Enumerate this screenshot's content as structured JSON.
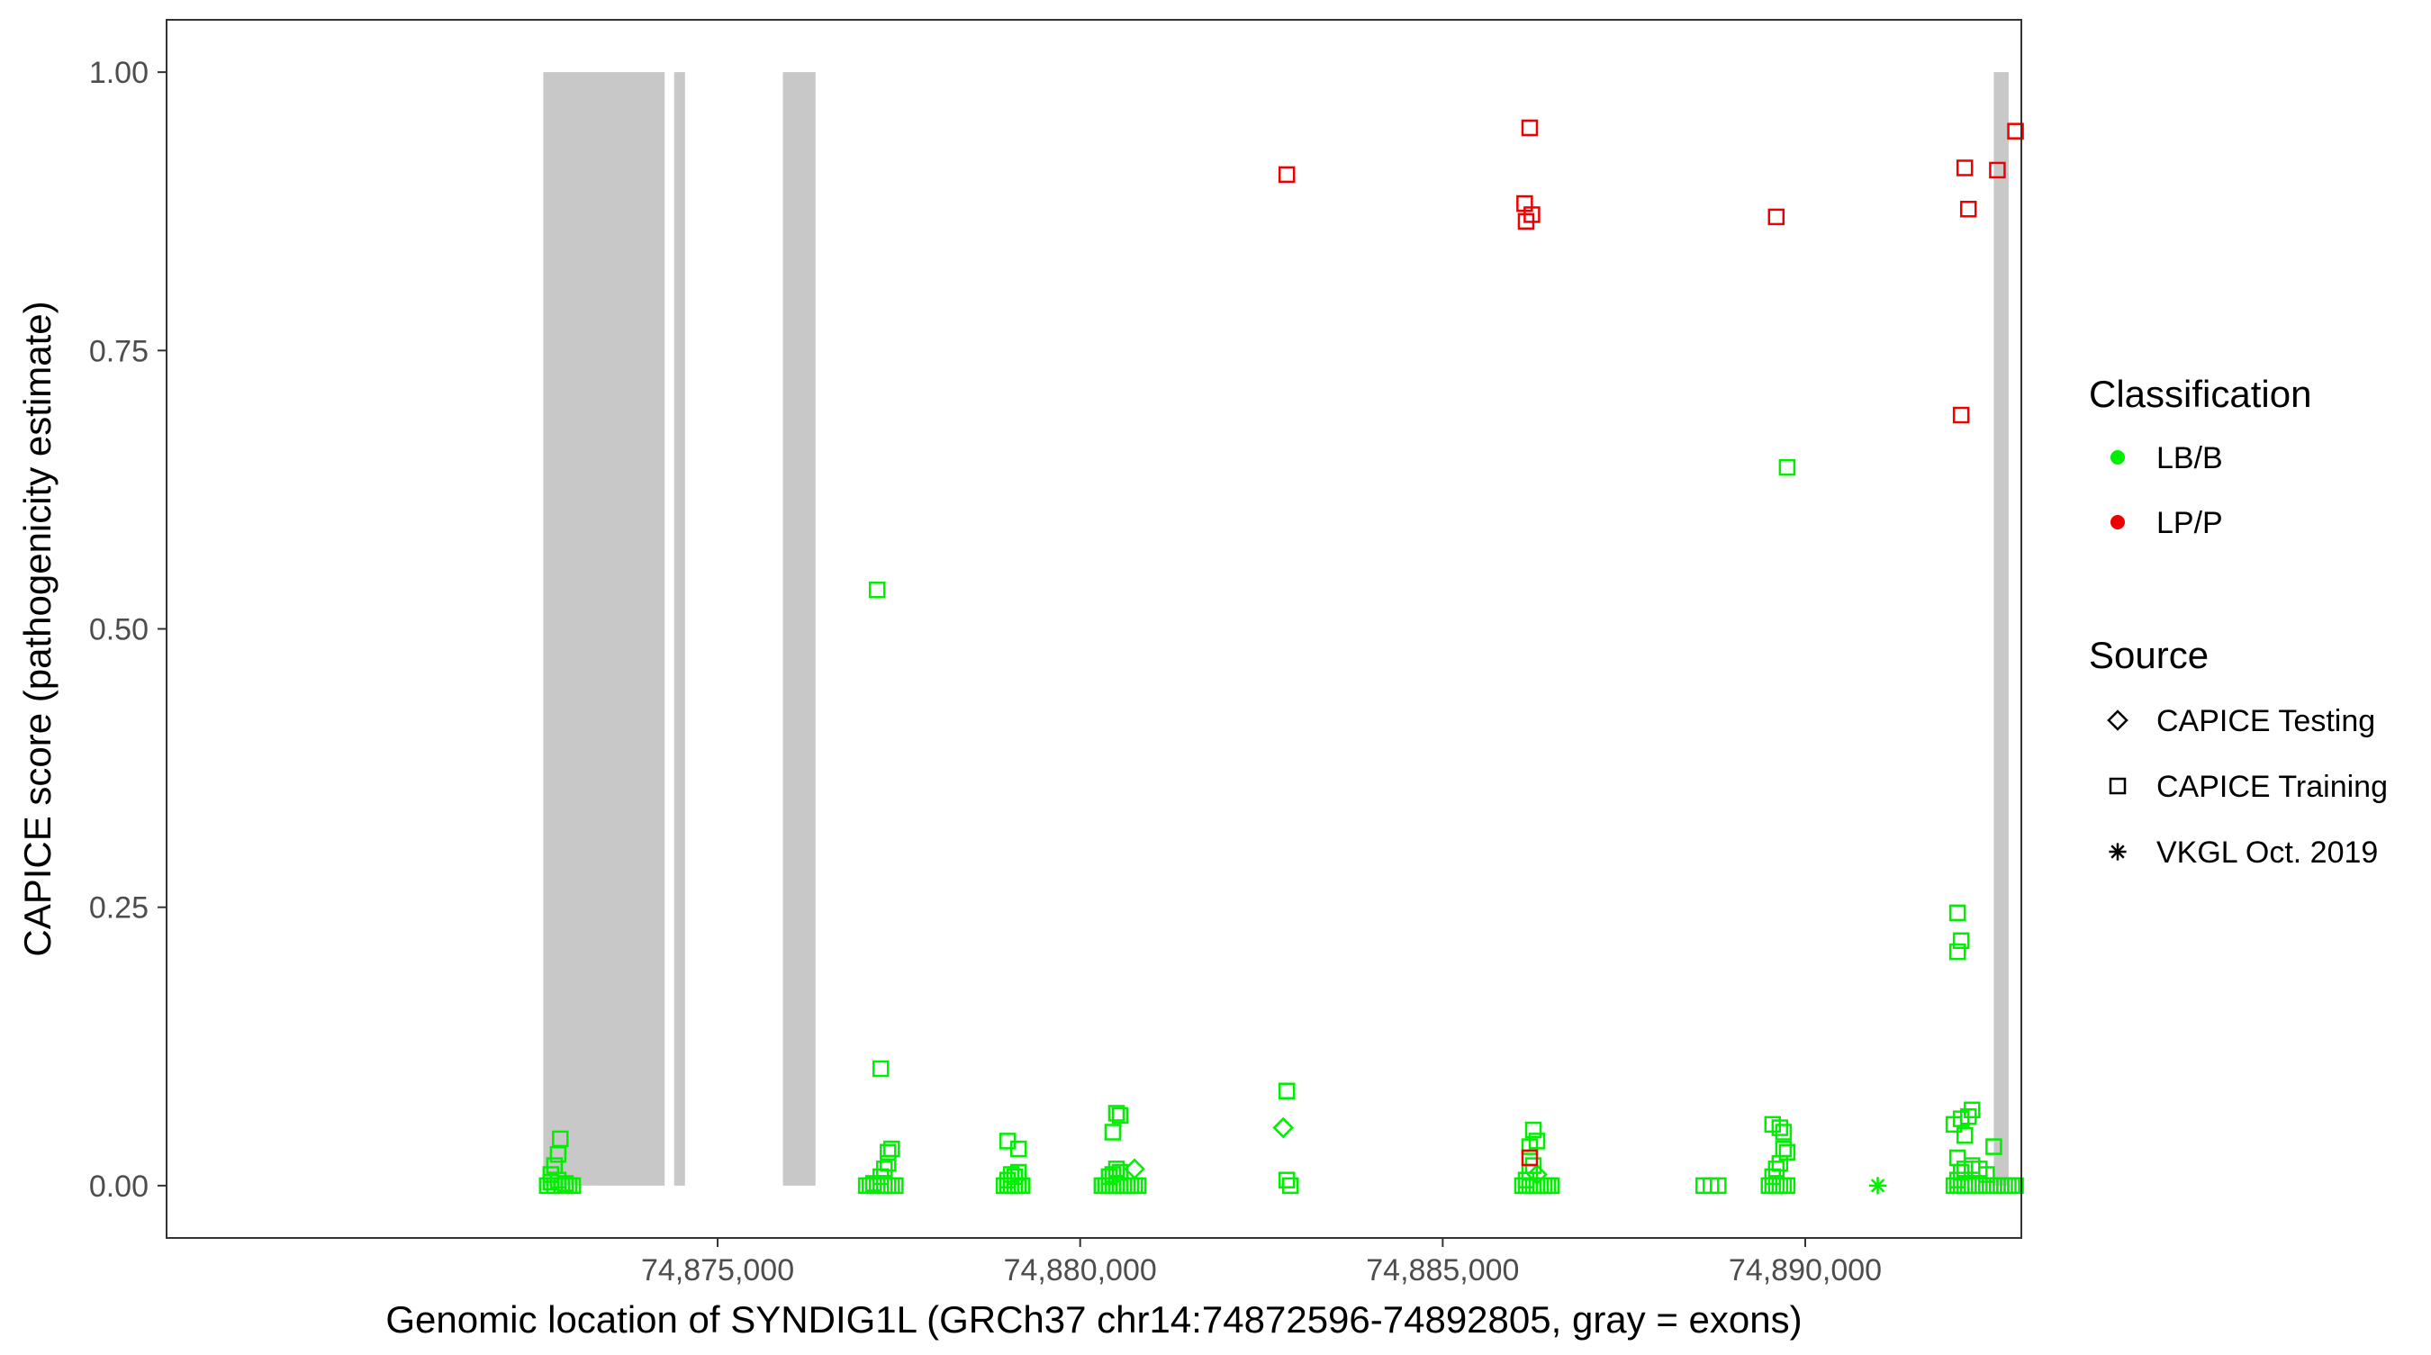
{
  "chart_data": {
    "type": "scatter",
    "title": "",
    "xlabel": "Genomic location of SYNDIG1L (GRCh37 chr14:74872596-74892805, gray = exons)",
    "ylabel": "CAPICE score (pathogenicity estimate)",
    "xlim": [
      74867400,
      74892980
    ],
    "ylim": [
      -0.047,
      1.047
    ],
    "x_ticks": [
      74875000,
      74880000,
      74885000,
      74890000
    ],
    "x_tick_labels": [
      "74,875,000",
      "74,880,000",
      "74,885,000",
      "74,890,000"
    ],
    "y_ticks": [
      0,
      0.25,
      0.5,
      0.75,
      1.0
    ],
    "y_tick_labels": [
      "0.00",
      "0.25",
      "0.50",
      "0.75",
      "1.00"
    ],
    "grid": false,
    "exons": [
      {
        "start": 74872596,
        "end": 74874270
      },
      {
        "start": 74874400,
        "end": 74874550
      },
      {
        "start": 74875900,
        "end": 74876350
      },
      {
        "start": 74892600,
        "end": 74892805
      }
    ],
    "legend_position": "right",
    "legend": {
      "classification_title": "Classification",
      "classification": [
        {
          "label": "LB/B",
          "color": "#00ee00"
        },
        {
          "label": "LP/P",
          "color": "#ee0000"
        }
      ],
      "source_title": "Source",
      "source": [
        {
          "label": "CAPICE Testing",
          "shape": "diamond"
        },
        {
          "label": "CAPICE Training",
          "shape": "square"
        },
        {
          "label": "VKGL Oct. 2019",
          "shape": "asterisk"
        }
      ]
    },
    "series": [
      {
        "classification": "LB/B",
        "source": "CAPICE Training",
        "color": "#00ee00",
        "shape": "square",
        "points": [
          [
            74872650,
            0.0
          ],
          [
            74872700,
            0.003
          ],
          [
            74872750,
            0.0
          ],
          [
            74872800,
            0.005
          ],
          [
            74872850,
            0.0
          ],
          [
            74872900,
            0.002
          ],
          [
            74872950,
            0.0
          ],
          [
            74873000,
            0.0
          ],
          [
            74872700,
            0.01
          ],
          [
            74872750,
            0.018
          ],
          [
            74872800,
            0.028
          ],
          [
            74872830,
            0.042
          ],
          [
            74877200,
            0.535
          ],
          [
            74877250,
            0.105
          ],
          [
            74877050,
            0.0
          ],
          [
            74877100,
            0.0
          ],
          [
            74877150,
            0.002
          ],
          [
            74877200,
            0.0
          ],
          [
            74877250,
            0.0
          ],
          [
            74877300,
            0.0
          ],
          [
            74877350,
            0.0
          ],
          [
            74877400,
            0.0
          ],
          [
            74877450,
            0.0
          ],
          [
            74877250,
            0.008
          ],
          [
            74877300,
            0.015
          ],
          [
            74877350,
            0.02
          ],
          [
            74877350,
            0.03
          ],
          [
            74877400,
            0.033
          ],
          [
            74878950,
            0.0
          ],
          [
            74879000,
            0.0
          ],
          [
            74879050,
            0.0
          ],
          [
            74879100,
            0.0
          ],
          [
            74879150,
            0.0
          ],
          [
            74879200,
            0.0
          ],
          [
            74879000,
            0.005
          ],
          [
            74879050,
            0.01
          ],
          [
            74879100,
            0.008
          ],
          [
            74879150,
            0.012
          ],
          [
            74879000,
            0.04
          ],
          [
            74879150,
            0.033
          ],
          [
            74880300,
            0.0
          ],
          [
            74880350,
            0.0
          ],
          [
            74880400,
            0.0
          ],
          [
            74880450,
            0.0
          ],
          [
            74880500,
            0.0
          ],
          [
            74880550,
            0.0
          ],
          [
            74880600,
            0.0
          ],
          [
            74880650,
            0.0
          ],
          [
            74880700,
            0.0
          ],
          [
            74880750,
            0.0
          ],
          [
            74880800,
            0.0
          ],
          [
            74880400,
            0.008
          ],
          [
            74880450,
            0.01
          ],
          [
            74880500,
            0.015
          ],
          [
            74880550,
            0.012
          ],
          [
            74880450,
            0.048
          ],
          [
            74880500,
            0.065
          ],
          [
            74880550,
            0.063
          ],
          [
            74882850,
            0.085
          ],
          [
            74882850,
            0.005
          ],
          [
            74882900,
            0.0
          ],
          [
            74886100,
            0.0
          ],
          [
            74886150,
            0.0
          ],
          [
            74886200,
            0.0
          ],
          [
            74886250,
            0.0
          ],
          [
            74886300,
            0.0
          ],
          [
            74886350,
            0.0
          ],
          [
            74886400,
            0.0
          ],
          [
            74886450,
            0.0
          ],
          [
            74886500,
            0.0
          ],
          [
            74886150,
            0.005
          ],
          [
            74886200,
            0.012
          ],
          [
            74886250,
            0.018
          ],
          [
            74886200,
            0.035
          ],
          [
            74886250,
            0.05
          ],
          [
            74886300,
            0.04
          ],
          [
            74888600,
            0.0
          ],
          [
            74888700,
            0.0
          ],
          [
            74888800,
            0.0
          ],
          [
            74889500,
            0.0
          ],
          [
            74889550,
            0.0
          ],
          [
            74889600,
            0.0
          ],
          [
            74889650,
            0.0
          ],
          [
            74889700,
            0.0
          ],
          [
            74889750,
            0.0
          ],
          [
            74889550,
            0.008
          ],
          [
            74889600,
            0.015
          ],
          [
            74889650,
            0.02
          ],
          [
            74889700,
            0.033
          ],
          [
            74889750,
            0.03
          ],
          [
            74889550,
            0.055
          ],
          [
            74889650,
            0.052
          ],
          [
            74889700,
            0.048
          ],
          [
            74889750,
            0.645
          ],
          [
            74892100,
            0.245
          ],
          [
            74892150,
            0.22
          ],
          [
            74892100,
            0.21
          ],
          [
            74892050,
            0.0
          ],
          [
            74892100,
            0.0
          ],
          [
            74892150,
            0.0
          ],
          [
            74892200,
            0.0
          ],
          [
            74892250,
            0.0
          ],
          [
            74892300,
            0.0
          ],
          [
            74892350,
            0.0
          ],
          [
            74892400,
            0.0
          ],
          [
            74892450,
            0.0
          ],
          [
            74892500,
            0.0
          ],
          [
            74892550,
            0.0
          ],
          [
            74892600,
            0.0
          ],
          [
            74892650,
            0.0
          ],
          [
            74892700,
            0.0
          ],
          [
            74892750,
            0.0
          ],
          [
            74892800,
            0.0
          ],
          [
            74892850,
            0.0
          ],
          [
            74892900,
            0.0
          ],
          [
            74892100,
            0.005
          ],
          [
            74892150,
            0.012
          ],
          [
            74892200,
            0.015
          ],
          [
            74892300,
            0.018
          ],
          [
            74892400,
            0.015
          ],
          [
            74892500,
            0.01
          ],
          [
            74892050,
            0.055
          ],
          [
            74892150,
            0.06
          ],
          [
            74892250,
            0.062
          ],
          [
            74892300,
            0.068
          ],
          [
            74892200,
            0.045
          ],
          [
            74892100,
            0.025
          ],
          [
            74892600,
            0.035
          ]
        ]
      },
      {
        "classification": "LB/B",
        "source": "CAPICE Testing",
        "color": "#00ee00",
        "shape": "diamond",
        "points": [
          [
            74880750,
            0.015
          ],
          [
            74882800,
            0.052
          ],
          [
            74886300,
            0.01
          ]
        ]
      },
      {
        "classification": "LB/B",
        "source": "VKGL Oct. 2019",
        "color": "#00ee00",
        "shape": "asterisk",
        "points": [
          [
            74891000,
            0.0
          ]
        ]
      },
      {
        "classification": "LP/P",
        "source": "CAPICE Training",
        "color": "#ee0000",
        "shape": "square",
        "points": [
          [
            74882850,
            0.908
          ],
          [
            74886200,
            0.95
          ],
          [
            74886130,
            0.882
          ],
          [
            74886230,
            0.872
          ],
          [
            74886150,
            0.866
          ],
          [
            74889600,
            0.87
          ],
          [
            74892150,
            0.692
          ],
          [
            74892200,
            0.914
          ],
          [
            74892250,
            0.877
          ],
          [
            74892650,
            0.912
          ],
          [
            74892900,
            0.947
          ],
          [
            74886200,
            0.025
          ]
        ]
      }
    ]
  }
}
